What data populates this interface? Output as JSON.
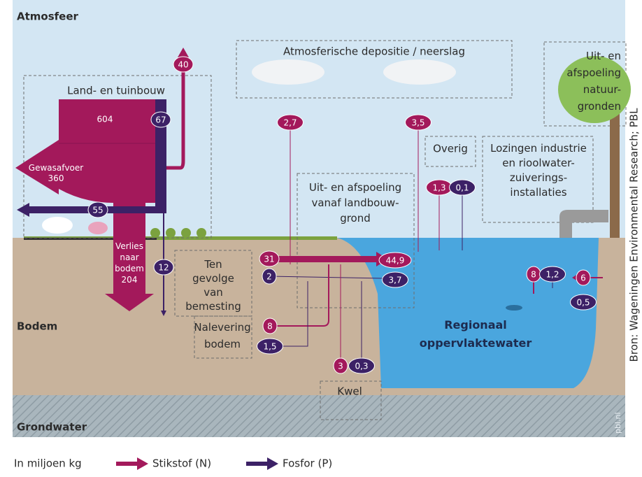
{
  "zones": {
    "atmosphere": "Atmosfeer",
    "soil": "Bodem",
    "groundwater": "Grondwater"
  },
  "agriculture": {
    "title": "Land- en tuinbouw",
    "n_total": "604",
    "p_total": "67",
    "n_air": "40",
    "crop_removal": [
      "Gewasafvoer",
      "360"
    ],
    "p_removal": "55",
    "p_soil": "12",
    "n_soil_loss": [
      "Verlies",
      "naar",
      "bodem",
      "204"
    ]
  },
  "deposition": {
    "title": "Atmosferische depositie / neerslag",
    "n_a": "2,7",
    "n_b": "3,5"
  },
  "other": {
    "title": "Overig",
    "n": "1,3",
    "p": "0,1"
  },
  "nature": {
    "title": [
      "Uit- en",
      "afspoeling",
      "natuur-",
      "gronden"
    ]
  },
  "industry": {
    "title": [
      "Lozingen industrie",
      "en rioolwater-",
      "zuiverings-",
      "installaties"
    ],
    "n": "8",
    "p": "1,2"
  },
  "runoff": {
    "title": [
      "Uit- en afspoeling",
      "vanaf landbouw-",
      "grond"
    ],
    "n_total": "44,9",
    "p_total": "3,7"
  },
  "fertilization": {
    "title": [
      "Ten",
      "gevolge",
      "van",
      "bemesting"
    ],
    "n": "31",
    "p": "2"
  },
  "release": {
    "title": [
      "Nalevering",
      "bodem"
    ],
    "n": "8",
    "p": "1,5"
  },
  "seepage": {
    "title": "Kwel",
    "n": "3",
    "p": "0,3"
  },
  "right_inflow": {
    "n": "6",
    "p": "0,5"
  },
  "water": {
    "title": [
      "Regionaal",
      "oppervlaktewater"
    ]
  },
  "watermark": "pbl.nl",
  "source": "Bron: Wageningen Environmental Research; PBL",
  "legend": {
    "unit": "In miljoen kg",
    "nitrogen": "Stikstof (N)",
    "phosphorus": "Fosfor (P)"
  }
}
